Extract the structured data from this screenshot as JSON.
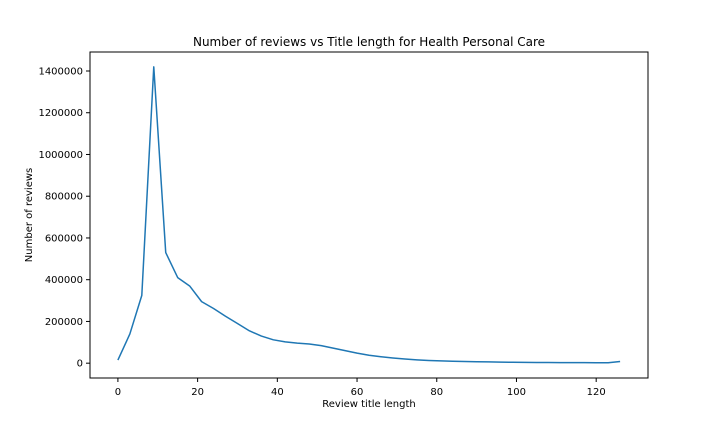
{
  "chart_data": {
    "type": "line",
    "title": "Number of reviews vs Title length for Health Personal Care",
    "xlabel": "Review title length",
    "ylabel": "Number of reviews",
    "xlim": [
      -7,
      133
    ],
    "ylim": [
      -71000,
      1491000
    ],
    "xticks": [
      0,
      20,
      40,
      60,
      80,
      100,
      120
    ],
    "yticks": [
      0,
      200000,
      400000,
      600000,
      800000,
      1000000,
      1200000,
      1400000
    ],
    "grid": false,
    "line_color": "#1f77b4",
    "x": [
      0,
      3,
      6,
      9,
      12,
      15,
      18,
      21,
      24,
      27,
      30,
      33,
      36,
      39,
      42,
      45,
      48,
      51,
      54,
      57,
      60,
      63,
      66,
      69,
      72,
      75,
      78,
      81,
      84,
      87,
      90,
      93,
      96,
      99,
      102,
      105,
      108,
      111,
      114,
      117,
      120,
      123,
      126
    ],
    "y": [
      15000,
      140000,
      325000,
      1420000,
      530000,
      410000,
      370000,
      295000,
      262000,
      225000,
      190000,
      155000,
      130000,
      112000,
      102000,
      96000,
      92000,
      84000,
      72000,
      60000,
      48000,
      38000,
      31000,
      25000,
      20000,
      16000,
      13000,
      11000,
      9000,
      8000,
      7000,
      6000,
      5000,
      4500,
      4000,
      3500,
      3000,
      2800,
      2600,
      2400,
      2200,
      2000,
      8000
    ]
  }
}
